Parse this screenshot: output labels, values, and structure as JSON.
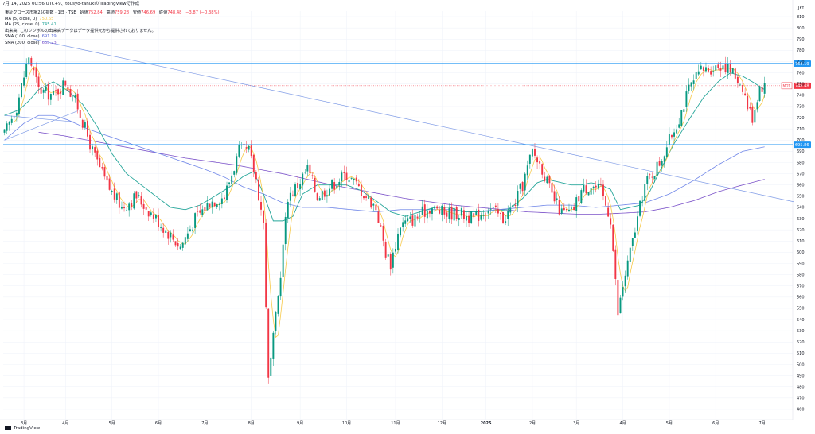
{
  "header": {
    "info": "7月 14, 2025 00:56 UTC+9、tousyo-tanukiがTradingViewで作成"
  },
  "legend": {
    "symbol": "東証グロース市場250指数 · 1日 · TSE",
    "ohlc_labels": {
      "open": "始値",
      "high": "高値",
      "low": "安値",
      "close": "終値"
    },
    "open": "752.84",
    "high": "759.28",
    "low": "746.69",
    "close": "748.48",
    "change": "−3.87 (−0.38%)",
    "indicators": [
      {
        "label": "MA (5, close, 0)",
        "value": "750.65",
        "color": "#f7c948"
      },
      {
        "label": "MA (25, close, 0)",
        "value": "745.41",
        "color": "#26a69a"
      },
      {
        "label": "出来高: このシンボルの出来高データはデータ提供元から提供されておりません。",
        "value": "",
        "color": "#131722"
      },
      {
        "label": "SMA (100, close)",
        "value": "691.19",
        "color": "#5b6bd6"
      },
      {
        "label": "SMA (200, close)",
        "value": "665.23",
        "color": "#7b52c9"
      }
    ]
  },
  "footer": {
    "brand": "TradingView"
  },
  "colors": {
    "up": "#089981",
    "down": "#f23645",
    "ma5": "#f7c948",
    "ma25": "#26a69a",
    "sma100": "#6f86e8",
    "sma200": "#7b52c9",
    "hline": "#2196f3",
    "trend": "#7f9be6",
    "lastPriceTag": "#f23645",
    "hlineTag": "#2196f3"
  },
  "chart_data": {
    "type": "candlestick",
    "currency": "JPY",
    "ylim": [
      455,
      815
    ],
    "y_ticks": [
      460,
      470,
      480,
      490,
      500,
      510,
      520,
      530,
      540,
      550,
      560,
      570,
      580,
      590,
      600,
      610,
      620,
      630,
      640,
      650,
      660,
      670,
      680,
      690,
      700,
      710,
      720,
      730,
      740,
      750,
      760,
      770,
      780,
      790,
      800,
      810
    ],
    "x_ticks": [
      "3月",
      "4月",
      "5月",
      "6月",
      "7月",
      "8月",
      "9月",
      "10月",
      "11月",
      "12月",
      "2025",
      "2月",
      "3月",
      "4月",
      "5月",
      "6月",
      "7月"
    ],
    "x_tick_positions": [
      8,
      25,
      44,
      63,
      82,
      101,
      121,
      140,
      160,
      179,
      197,
      216,
      234,
      253,
      272,
      291,
      310
    ],
    "n_bars": 323,
    "horizontal_lines": [
      {
        "value": 768.19,
        "label": "768.19"
      },
      {
        "value": 695.86,
        "label": "695.86"
      }
    ],
    "last_price": {
      "value": 748.48,
      "label": "748.48",
      "symbol": "MOT"
    },
    "bars_anchor": [
      [
        0,
        705
      ],
      [
        5,
        730
      ],
      [
        10,
        775
      ],
      [
        14,
        745
      ],
      [
        20,
        740
      ],
      [
        25,
        752
      ],
      [
        30,
        730
      ],
      [
        36,
        690
      ],
      [
        42,
        660
      ],
      [
        48,
        640
      ],
      [
        54,
        650
      ],
      [
        60,
        635
      ],
      [
        66,
        620
      ],
      [
        72,
        605
      ],
      [
        78,
        630
      ],
      [
        84,
        645
      ],
      [
        90,
        650
      ],
      [
        96,
        690
      ],
      [
        100,
        690
      ],
      [
        103,
        665
      ],
      [
        106,
        625
      ],
      [
        108,
        485
      ],
      [
        112,
        560
      ],
      [
        116,
        650
      ],
      [
        120,
        660
      ],
      [
        124,
        675
      ],
      [
        128,
        650
      ],
      [
        134,
        660
      ],
      [
        140,
        670
      ],
      [
        146,
        655
      ],
      [
        152,
        640
      ],
      [
        156,
        600
      ],
      [
        158,
        590
      ],
      [
        162,
        625
      ],
      [
        168,
        630
      ],
      [
        174,
        640
      ],
      [
        180,
        635
      ],
      [
        186,
        635
      ],
      [
        192,
        630
      ],
      [
        198,
        640
      ],
      [
        204,
        630
      ],
      [
        208,
        640
      ],
      [
        212,
        660
      ],
      [
        216,
        690
      ],
      [
        220,
        675
      ],
      [
        224,
        650
      ],
      [
        228,
        635
      ],
      [
        232,
        635
      ],
      [
        236,
        655
      ],
      [
        240,
        660
      ],
      [
        244,
        655
      ],
      [
        248,
        630
      ],
      [
        251,
        545
      ],
      [
        253,
        570
      ],
      [
        257,
        610
      ],
      [
        262,
        660
      ],
      [
        268,
        680
      ],
      [
        272,
        700
      ],
      [
        276,
        720
      ],
      [
        280,
        745
      ],
      [
        285,
        762
      ],
      [
        290,
        765
      ],
      [
        294,
        768
      ],
      [
        298,
        760
      ],
      [
        302,
        748
      ],
      [
        304,
        730
      ],
      [
        306,
        720
      ],
      [
        309,
        748
      ],
      [
        311,
        748
      ]
    ],
    "ma25_anchor": [
      [
        0,
        722
      ],
      [
        6,
        727
      ],
      [
        10,
        735
      ],
      [
        14,
        745
      ],
      [
        20,
        752
      ],
      [
        26,
        744
      ],
      [
        32,
        732
      ],
      [
        38,
        712
      ],
      [
        44,
        688
      ],
      [
        50,
        670
      ],
      [
        56,
        660
      ],
      [
        62,
        650
      ],
      [
        68,
        640
      ],
      [
        74,
        638
      ],
      [
        80,
        642
      ],
      [
        86,
        650
      ],
      [
        92,
        658
      ],
      [
        98,
        668
      ],
      [
        102,
        672
      ],
      [
        106,
        652
      ],
      [
        110,
        628
      ],
      [
        114,
        628
      ],
      [
        118,
        632
      ],
      [
        122,
        652
      ],
      [
        128,
        660
      ],
      [
        134,
        660
      ],
      [
        140,
        660
      ],
      [
        146,
        655
      ],
      [
        152,
        646
      ],
      [
        158,
        636
      ],
      [
        164,
        632
      ],
      [
        170,
        636
      ],
      [
        176,
        640
      ],
      [
        182,
        640
      ],
      [
        188,
        636
      ],
      [
        194,
        636
      ],
      [
        200,
        637
      ],
      [
        206,
        638
      ],
      [
        212,
        648
      ],
      [
        218,
        662
      ],
      [
        222,
        665
      ],
      [
        228,
        662
      ],
      [
        232,
        660
      ],
      [
        236,
        660
      ],
      [
        240,
        662
      ],
      [
        244,
        660
      ],
      [
        248,
        656
      ],
      [
        252,
        638
      ],
      [
        256,
        640
      ],
      [
        260,
        642
      ],
      [
        264,
        654
      ],
      [
        268,
        672
      ],
      [
        274,
        697
      ],
      [
        280,
        718
      ],
      [
        286,
        738
      ],
      [
        292,
        752
      ],
      [
        297,
        760
      ],
      [
        302,
        757
      ],
      [
        306,
        752
      ],
      [
        311,
        745
      ]
    ],
    "sma100_anchor": [
      [
        0,
        700
      ],
      [
        8,
        715
      ],
      [
        14,
        722
      ],
      [
        20,
        722
      ],
      [
        26,
        718
      ],
      [
        34,
        710
      ],
      [
        42,
        704
      ],
      [
        50,
        698
      ],
      [
        58,
        692
      ],
      [
        66,
        686
      ],
      [
        74,
        680
      ],
      [
        82,
        674
      ],
      [
        90,
        667
      ],
      [
        98,
        658
      ],
      [
        106,
        652
      ],
      [
        114,
        644
      ],
      [
        122,
        640
      ],
      [
        132,
        640
      ],
      [
        142,
        638
      ],
      [
        152,
        636
      ],
      [
        162,
        638
      ],
      [
        172,
        638
      ],
      [
        182,
        638
      ],
      [
        192,
        636
      ],
      [
        202,
        638
      ],
      [
        212,
        640
      ],
      [
        222,
        642
      ],
      [
        232,
        642
      ],
      [
        242,
        640
      ],
      [
        252,
        642
      ],
      [
        262,
        644
      ],
      [
        272,
        652
      ],
      [
        282,
        664
      ],
      [
        292,
        678
      ],
      [
        302,
        690
      ],
      [
        311,
        694
      ]
    ],
    "sma200_anchor": [
      [
        14,
        707
      ],
      [
        24,
        704
      ],
      [
        34,
        700
      ],
      [
        44,
        696
      ],
      [
        54,
        692
      ],
      [
        64,
        688
      ],
      [
        74,
        684
      ],
      [
        84,
        681
      ],
      [
        94,
        678
      ],
      [
        104,
        674
      ],
      [
        114,
        670
      ],
      [
        124,
        665
      ],
      [
        134,
        660
      ],
      [
        144,
        656
      ],
      [
        154,
        652
      ],
      [
        164,
        648
      ],
      [
        174,
        645
      ],
      [
        184,
        642
      ],
      [
        194,
        640
      ],
      [
        204,
        638
      ],
      [
        214,
        636
      ],
      [
        224,
        635
      ],
      [
        234,
        634
      ],
      [
        244,
        634
      ],
      [
        254,
        635
      ],
      [
        262,
        636
      ],
      [
        272,
        640
      ],
      [
        282,
        646
      ],
      [
        292,
        654
      ],
      [
        302,
        660
      ],
      [
        311,
        665
      ]
    ],
    "trendlines": [
      {
        "from": [
          12,
          790
        ],
        "to": [
          323,
          645
        ]
      },
      {
        "from": [
          0,
          722
        ],
        "to": [
          30,
          716
        ]
      },
      {
        "from": [
          0,
          700
        ],
        "to": [
          30,
          726
        ]
      }
    ]
  }
}
